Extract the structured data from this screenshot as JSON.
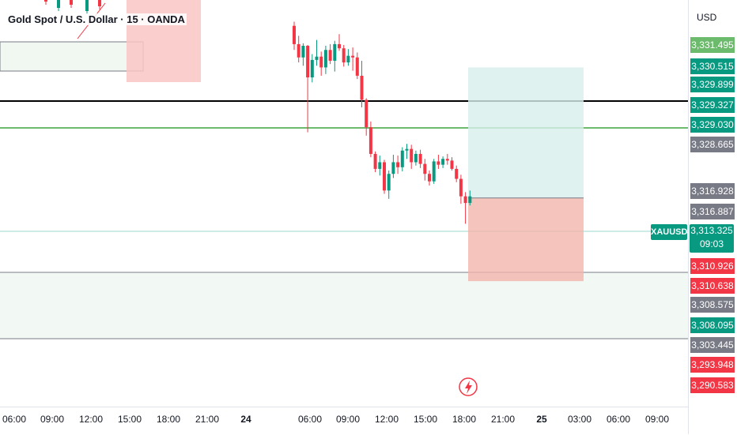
{
  "header": {
    "symbol_title": "Gold Spot / U.S. Dollar · 15 · OANDA"
  },
  "price_axis": {
    "currency": "USD",
    "labels": [
      {
        "value": "3,331.495",
        "color": "#6cba6c"
      },
      {
        "value": "3,330.515",
        "color": "#089981"
      },
      {
        "value": "3,329.899",
        "color": "#089981"
      },
      {
        "value": "3,329.327",
        "color": "#089981"
      },
      {
        "value": "3,329.030",
        "color": "#089981"
      },
      {
        "value": "3,328.665",
        "color": "#787b86"
      },
      {
        "value": "3,316.928",
        "color": "#787b86"
      },
      {
        "value": "3,316.887",
        "color": "#787b86"
      },
      {
        "value": "3,310.926",
        "color": "#f23645"
      },
      {
        "value": "3,310.638",
        "color": "#f23645"
      },
      {
        "value": "3,308.575",
        "color": "#787b86"
      },
      {
        "value": "3,308.095",
        "color": "#089981"
      },
      {
        "value": "3,303.445",
        "color": "#787b86"
      },
      {
        "value": "3,293.948",
        "color": "#f23645"
      },
      {
        "value": "3,290.583",
        "color": "#f23645"
      }
    ],
    "current": {
      "symbol": "XAUUSD",
      "price": "3,313.325",
      "countdown": "09:03"
    }
  },
  "time_axis": {
    "labels": [
      {
        "text": "06:00",
        "bold": false
      },
      {
        "text": "09:00",
        "bold": false
      },
      {
        "text": "12:00",
        "bold": false
      },
      {
        "text": "15:00",
        "bold": false
      },
      {
        "text": "18:00",
        "bold": false
      },
      {
        "text": "21:00",
        "bold": false
      },
      {
        "text": "24",
        "bold": true
      },
      {
        "text": "06:00",
        "bold": false
      },
      {
        "text": "09:00",
        "bold": false
      },
      {
        "text": "12:00",
        "bold": false
      },
      {
        "text": "15:00",
        "bold": false
      },
      {
        "text": "18:00",
        "bold": false
      },
      {
        "text": "21:00",
        "bold": false
      },
      {
        "text": "25",
        "bold": true
      },
      {
        "text": "03:00",
        "bold": false
      },
      {
        "text": "06:00",
        "bold": false
      },
      {
        "text": "09:00",
        "bold": false
      }
    ]
  },
  "colors": {
    "up": "#089981",
    "down": "#f23645",
    "black_line": "#000000",
    "green_line": "#6cba6c",
    "brand": "#089981"
  },
  "icons": {
    "event": "lightning-icon"
  },
  "chart_data": {
    "type": "candlestick",
    "title": "Gold Spot / U.S. Dollar · 15 · OANDA",
    "symbol": "XAUUSD",
    "ylabel": "USD",
    "ylim": [
      3288,
      3333
    ],
    "horizontal_lines": [
      3329.327,
      3329.03
    ],
    "current_price": 3313.325,
    "position_tool": {
      "entry": 3313.1,
      "target": 3328.8,
      "stop": 3303.1
    },
    "candles": [
      [
        3333.8,
        3334.3,
        3330.9,
        3331.6
      ],
      [
        3331.6,
        3332.6,
        3329.4,
        3330.0
      ],
      [
        3330.0,
        3331.7,
        3329.0,
        3331.4
      ],
      [
        3331.4,
        3331.5,
        3321.0,
        3327.6
      ],
      [
        3327.6,
        3330.4,
        3327.0,
        3329.7
      ],
      [
        3329.7,
        3332.1,
        3329.0,
        3330.1
      ],
      [
        3330.1,
        3330.7,
        3327.8,
        3328.8
      ],
      [
        3328.8,
        3331.4,
        3328.0,
        3330.9
      ],
      [
        3330.9,
        3331.6,
        3329.2,
        3329.6
      ],
      [
        3329.6,
        3332.0,
        3328.3,
        3331.6
      ],
      [
        3331.6,
        3332.8,
        3330.8,
        3331.1
      ],
      [
        3331.1,
        3331.5,
        3328.9,
        3329.4
      ],
      [
        3329.4,
        3331.0,
        3329.0,
        3330.2
      ],
      [
        3330.2,
        3331.2,
        3328.4,
        3330.0
      ],
      [
        3330.0,
        3330.6,
        3327.4,
        3327.8
      ],
      [
        3327.8,
        3329.6,
        3324.0,
        3324.9
      ],
      [
        3324.9,
        3325.1,
        3320.6,
        3321.6
      ],
      [
        3321.6,
        3322.3,
        3318.0,
        3318.4
      ],
      [
        3318.4,
        3318.7,
        3316.2,
        3316.6
      ],
      [
        3316.6,
        3318.2,
        3315.8,
        3317.4
      ],
      [
        3317.4,
        3317.7,
        3313.6,
        3314.0
      ],
      [
        3314.0,
        3316.4,
        3313.0,
        3316.0
      ],
      [
        3316.0,
        3318.3,
        3315.5,
        3317.4
      ],
      [
        3317.4,
        3318.2,
        3316.0,
        3316.8
      ],
      [
        3316.8,
        3319.2,
        3316.3,
        3318.8
      ],
      [
        3318.8,
        3319.6,
        3317.8,
        3319.0
      ],
      [
        3319.0,
        3319.5,
        3316.6,
        3317.4
      ],
      [
        3317.4,
        3318.8,
        3317.0,
        3318.4
      ],
      [
        3318.4,
        3318.9,
        3316.7,
        3317.2
      ],
      [
        3317.2,
        3317.8,
        3315.2,
        3316.0
      ],
      [
        3316.0,
        3316.4,
        3314.6,
        3315.1
      ],
      [
        3315.1,
        3317.8,
        3314.8,
        3317.5
      ],
      [
        3317.5,
        3318.3,
        3316.6,
        3317.1
      ],
      [
        3317.1,
        3318.1,
        3316.7,
        3317.8
      ],
      [
        3317.8,
        3318.4,
        3317.1,
        3317.6
      ],
      [
        3317.6,
        3318.0,
        3316.4,
        3316.6
      ],
      [
        3316.6,
        3317.0,
        3315.0,
        3315.4
      ],
      [
        3315.4,
        3315.9,
        3312.4,
        3313.3
      ],
      [
        3313.3,
        3313.8,
        3310.0,
        3312.5
      ],
      [
        3312.5,
        3314.0,
        3312.2,
        3313.3
      ]
    ]
  }
}
